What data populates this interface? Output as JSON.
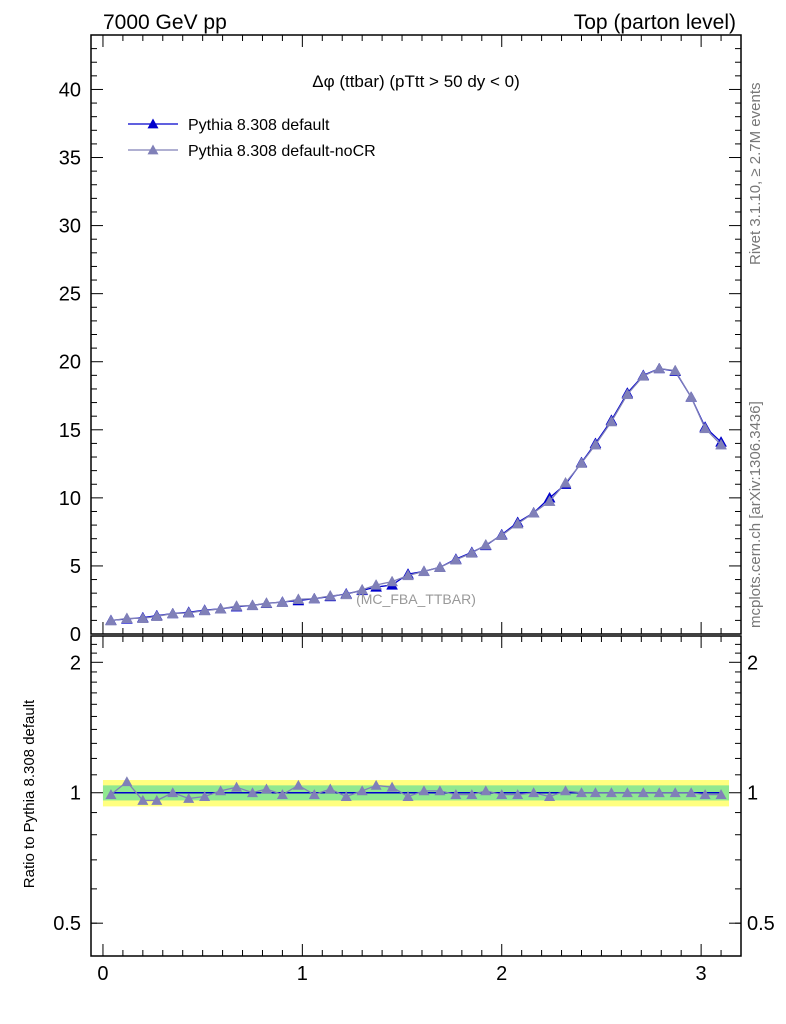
{
  "header": {
    "left": "7000 GeV pp",
    "right": "Top (parton level)"
  },
  "side_labels": {
    "rivet": "Rivet 3.1.10, ≥ 2.7M events",
    "mcplots": "mcplots.cern.ch [arXiv:1306.3436]"
  },
  "analysis_tag": "(MC_FBA_TTBAR)",
  "chart_data": [
    {
      "type": "line",
      "title": "Δφ (ttbar) (pTtt > 50 dy < 0)",
      "ylim": [
        0,
        44
      ],
      "xlim": [
        -0.06,
        3.2
      ],
      "yticks": [
        0,
        5,
        10,
        15,
        20,
        25,
        30,
        35,
        40
      ],
      "legend_position": "top-left",
      "x": [
        0.04,
        0.12,
        0.2,
        0.27,
        0.35,
        0.43,
        0.51,
        0.59,
        0.67,
        0.75,
        0.82,
        0.9,
        0.98,
        1.06,
        1.14,
        1.22,
        1.3,
        1.37,
        1.45,
        1.53,
        1.61,
        1.69,
        1.77,
        1.85,
        1.92,
        2.0,
        2.08,
        2.16,
        2.24,
        2.32,
        2.4,
        2.47,
        2.55,
        2.63,
        2.71,
        2.79,
        2.87,
        2.95,
        3.02,
        3.1
      ],
      "series": [
        {
          "name": "Pythia 8.308 default",
          "color": "#0000cc",
          "values": [
            1.0,
            1.1,
            1.2,
            1.35,
            1.5,
            1.6,
            1.75,
            1.85,
            2.0,
            2.1,
            2.25,
            2.35,
            2.45,
            2.6,
            2.75,
            2.95,
            3.2,
            3.45,
            3.6,
            4.4,
            4.6,
            4.9,
            5.5,
            6.0,
            6.5,
            7.3,
            8.2,
            8.9,
            10.0,
            11.0,
            12.6,
            14.0,
            15.7,
            17.7,
            19.0,
            19.5,
            19.3,
            17.4,
            15.2,
            14.1
          ]
        },
        {
          "name": "Pythia 8.308 default-noCR",
          "color": "#8080b8",
          "values": [
            0.98,
            1.15,
            1.15,
            1.3,
            1.5,
            1.55,
            1.72,
            1.85,
            2.05,
            2.1,
            2.27,
            2.33,
            2.55,
            2.6,
            2.8,
            2.9,
            3.25,
            3.6,
            3.85,
            4.3,
            4.6,
            4.9,
            5.45,
            5.95,
            6.55,
            7.25,
            8.1,
            8.9,
            9.75,
            11.1,
            12.55,
            13.9,
            15.6,
            17.6,
            18.95,
            19.5,
            19.35,
            17.4,
            15.1,
            13.9
          ]
        }
      ]
    },
    {
      "type": "line",
      "ylabel": "Ratio to Pythia 8.308 default",
      "ylim": [
        0.42,
        2.3
      ],
      "xlim": [
        -0.06,
        3.2
      ],
      "xticks": [
        0,
        1,
        2,
        3
      ],
      "yticks": [
        0.5,
        1,
        2
      ],
      "band_colors": [
        "#ffff80",
        "#90e890"
      ],
      "x": [
        0.04,
        0.12,
        0.2,
        0.27,
        0.35,
        0.43,
        0.51,
        0.59,
        0.67,
        0.75,
        0.82,
        0.9,
        0.98,
        1.06,
        1.14,
        1.22,
        1.3,
        1.37,
        1.45,
        1.53,
        1.61,
        1.69,
        1.77,
        1.85,
        1.92,
        2.0,
        2.08,
        2.16,
        2.24,
        2.32,
        2.4,
        2.47,
        2.55,
        2.63,
        2.71,
        2.79,
        2.87,
        2.95,
        3.02,
        3.1
      ],
      "series": [
        {
          "name": "Pythia 8.308 default",
          "color": "#0000cc",
          "values": [
            1,
            1,
            1,
            1,
            1,
            1,
            1,
            1,
            1,
            1,
            1,
            1,
            1,
            1,
            1,
            1,
            1,
            1,
            1,
            1,
            1,
            1,
            1,
            1,
            1,
            1,
            1,
            1,
            1,
            1,
            1,
            1,
            1,
            1,
            1,
            1,
            1,
            1,
            1,
            1
          ]
        },
        {
          "name": "Pythia 8.308 default-noCR",
          "color": "#8080b8",
          "values": [
            0.99,
            1.06,
            0.96,
            0.96,
            1.0,
            0.97,
            0.98,
            1.01,
            1.03,
            1.0,
            1.02,
            0.99,
            1.04,
            0.99,
            1.02,
            0.98,
            1.01,
            1.04,
            1.03,
            0.98,
            1.01,
            1.01,
            0.99,
            0.99,
            1.01,
            0.99,
            0.99,
            1.0,
            0.98,
            1.01,
            1.0,
            1.0,
            1.0,
            1.0,
            1.0,
            1.0,
            1.0,
            1.0,
            0.99,
            0.99
          ]
        }
      ]
    }
  ]
}
